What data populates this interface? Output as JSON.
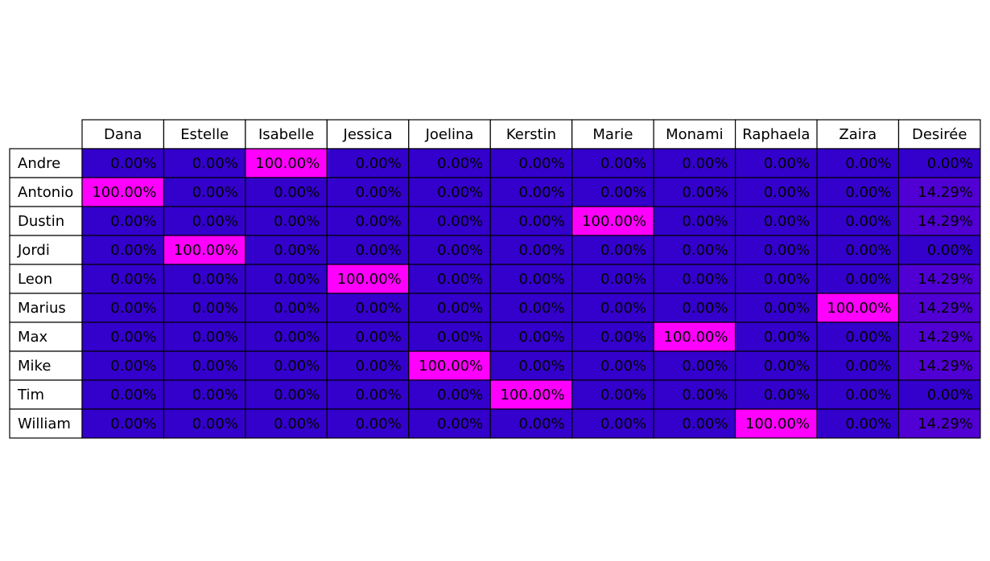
{
  "chart_data": {
    "type": "table",
    "columns": [
      "Dana",
      "Estelle",
      "Isabelle",
      "Jessica",
      "Joelina",
      "Kerstin",
      "Marie",
      "Monami",
      "Raphaela",
      "Zaira",
      "Desirée"
    ],
    "rows": [
      {
        "label": "Andre",
        "values": [
          0,
          0,
          100,
          0,
          0,
          0,
          0,
          0,
          0,
          0,
          0
        ]
      },
      {
        "label": "Antonio",
        "values": [
          100,
          0,
          0,
          0,
          0,
          0,
          0,
          0,
          0,
          0,
          14.29
        ]
      },
      {
        "label": "Dustin",
        "values": [
          0,
          0,
          0,
          0,
          0,
          0,
          100,
          0,
          0,
          0,
          14.29
        ]
      },
      {
        "label": "Jordi",
        "values": [
          0,
          100,
          0,
          0,
          0,
          0,
          0,
          0,
          0,
          0,
          0
        ]
      },
      {
        "label": "Leon",
        "values": [
          0,
          0,
          0,
          100,
          0,
          0,
          0,
          0,
          0,
          0,
          14.29
        ]
      },
      {
        "label": "Marius",
        "values": [
          0,
          0,
          0,
          0,
          0,
          0,
          0,
          0,
          0,
          100,
          14.29
        ]
      },
      {
        "label": "Max",
        "values": [
          0,
          0,
          0,
          0,
          0,
          0,
          0,
          100,
          0,
          0,
          14.29
        ]
      },
      {
        "label": "Mike",
        "values": [
          0,
          0,
          0,
          0,
          100,
          0,
          0,
          0,
          0,
          0,
          14.29
        ]
      },
      {
        "label": "Tim",
        "values": [
          0,
          0,
          0,
          0,
          0,
          100,
          0,
          0,
          0,
          0,
          0
        ]
      },
      {
        "label": "William",
        "values": [
          0,
          0,
          0,
          0,
          0,
          0,
          0,
          0,
          100,
          0,
          14.29
        ]
      }
    ],
    "value_format": "percent, 2 decimals",
    "colormap": {
      "low": "#3300cc",
      "mid": "#5500cc",
      "high": "#ff00ff"
    },
    "header_color": "#ffffff",
    "border_color": "#000000"
  }
}
